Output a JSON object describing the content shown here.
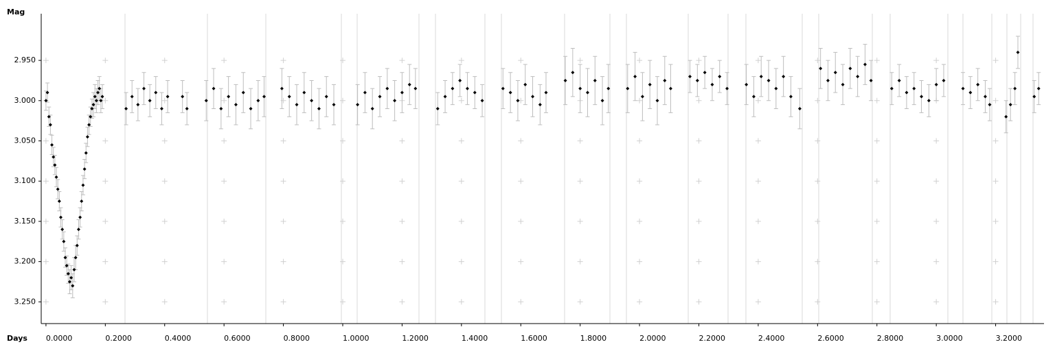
{
  "chart_data": {
    "type": "errorbar-scatter",
    "xlabel": "Days",
    "ylabel": "Mag",
    "xlim": [
      -0.016,
      3.363
    ],
    "ylim": [
      2.892,
      3.277
    ],
    "invert_y": true,
    "grid": "cross",
    "color": "#000000",
    "error_color": "#bdbdbd",
    "xticks": [
      {
        "value": 0,
        "label": "0.0000"
      },
      {
        "value": 0.2,
        "label": "0.2000"
      },
      {
        "value": 0.4,
        "label": "0.4000"
      },
      {
        "value": 0.6,
        "label": "0.6000"
      },
      {
        "value": 0.8,
        "label": "0.8000"
      },
      {
        "value": 1.0,
        "label": "1.0000"
      },
      {
        "value": 1.2,
        "label": "1.2000"
      },
      {
        "value": 1.4,
        "label": "1.4000"
      },
      {
        "value": 1.6,
        "label": "1.6000"
      },
      {
        "value": 1.8,
        "label": "1.8000"
      },
      {
        "value": 2.0,
        "label": "2.0000"
      },
      {
        "value": 2.2,
        "label": "2.2000"
      },
      {
        "value": 2.4,
        "label": "2.4000"
      },
      {
        "value": 2.6,
        "label": "2.6000"
      },
      {
        "value": 2.8,
        "label": "2.8000"
      },
      {
        "value": 3.0,
        "label": "3.0000"
      },
      {
        "value": 3.2,
        "label": "3.2000"
      }
    ],
    "yticks": [
      {
        "value": 2.95,
        "label": "2.950"
      },
      {
        "value": 3.0,
        "label": "3.000"
      },
      {
        "value": 3.05,
        "label": "3.050"
      },
      {
        "value": 3.1,
        "label": "3.100"
      },
      {
        "value": 3.15,
        "label": "3.150"
      },
      {
        "value": 3.2,
        "label": "3.200"
      },
      {
        "value": 3.25,
        "label": "3.250"
      }
    ],
    "x": [
      0.0,
      0.005,
      0.01,
      0.015,
      0.02,
      0.025,
      0.03,
      0.035,
      0.04,
      0.045,
      0.05,
      0.055,
      0.06,
      0.065,
      0.07,
      0.075,
      0.08,
      0.085,
      0.09,
      0.095,
      0.1,
      0.105,
      0.11,
      0.115,
      0.12,
      0.125,
      0.13,
      0.135,
      0.14,
      0.145,
      0.15,
      0.155,
      0.16,
      0.165,
      0.17,
      0.175,
      0.18,
      0.185,
      0.19,
      0.27,
      0.29,
      0.31,
      0.33,
      0.35,
      0.37,
      0.39,
      0.41,
      0.46,
      0.475,
      0.54,
      0.565,
      0.59,
      0.615,
      0.64,
      0.665,
      0.69,
      0.715,
      0.735,
      0.795,
      0.82,
      0.845,
      0.87,
      0.895,
      0.92,
      0.945,
      0.97,
      1.05,
      1.075,
      1.1,
      1.125,
      1.15,
      1.175,
      1.2,
      1.225,
      1.245,
      1.32,
      1.345,
      1.37,
      1.395,
      1.42,
      1.445,
      1.47,
      1.54,
      1.565,
      1.59,
      1.615,
      1.64,
      1.665,
      1.685,
      1.75,
      1.775,
      1.8,
      1.825,
      1.85,
      1.875,
      1.895,
      1.96,
      1.985,
      2.01,
      2.035,
      2.06,
      2.085,
      2.105,
      2.17,
      2.195,
      2.22,
      2.245,
      2.27,
      2.295,
      2.36,
      2.385,
      2.41,
      2.435,
      2.46,
      2.485,
      2.51,
      2.54,
      2.61,
      2.635,
      2.66,
      2.685,
      2.71,
      2.735,
      2.76,
      2.78,
      2.85,
      2.875,
      2.9,
      2.925,
      2.95,
      2.975,
      3.0,
      3.025,
      3.09,
      3.115,
      3.14,
      3.165,
      3.18,
      3.235,
      3.25,
      3.265,
      3.275,
      3.33,
      3.345
    ],
    "values": [
      3.0,
      2.99,
      3.02,
      3.03,
      3.055,
      3.07,
      3.08,
      3.095,
      3.11,
      3.125,
      3.145,
      3.16,
      3.175,
      3.195,
      3.205,
      3.215,
      3.225,
      3.22,
      3.23,
      3.21,
      3.195,
      3.18,
      3.16,
      3.145,
      3.125,
      3.105,
      3.085,
      3.065,
      3.045,
      3.03,
      3.02,
      3.01,
      3.005,
      2.995,
      3.0,
      2.99,
      2.985,
      3.0,
      2.995,
      3.01,
      2.995,
      3.005,
      2.985,
      3.0,
      2.99,
      3.01,
      2.995,
      2.995,
      3.01,
      3.0,
      2.985,
      3.01,
      2.995,
      3.005,
      2.99,
      3.01,
      3.0,
      2.995,
      2.985,
      2.995,
      3.005,
      2.99,
      3.0,
      3.01,
      2.995,
      3.005,
      3.005,
      2.99,
      3.01,
      2.995,
      2.985,
      3.0,
      2.99,
      2.98,
      2.985,
      3.01,
      2.995,
      2.985,
      2.975,
      2.985,
      2.99,
      3.0,
      2.985,
      2.99,
      3.0,
      2.98,
      2.995,
      3.005,
      2.99,
      2.975,
      2.965,
      2.985,
      2.99,
      2.975,
      3.0,
      2.985,
      2.985,
      2.97,
      2.995,
      2.98,
      3.0,
      2.975,
      2.985,
      2.97,
      2.975,
      2.965,
      2.98,
      2.97,
      2.985,
      2.98,
      2.995,
      2.97,
      2.975,
      2.985,
      2.97,
      2.995,
      3.01,
      2.96,
      2.975,
      2.965,
      2.98,
      2.96,
      2.97,
      2.955,
      2.975,
      2.985,
      2.975,
      2.99,
      2.985,
      2.995,
      3.0,
      2.98,
      2.975,
      2.985,
      2.99,
      2.98,
      2.995,
      3.005,
      3.02,
      3.005,
      2.985,
      2.94,
      2.995,
      2.985
    ],
    "errors": [
      0.012,
      0.012,
      0.012,
      0.012,
      0.012,
      0.012,
      0.012,
      0.012,
      0.012,
      0.012,
      0.012,
      0.012,
      0.012,
      0.012,
      0.012,
      0.012,
      0.015,
      0.015,
      0.015,
      0.015,
      0.015,
      0.012,
      0.012,
      0.012,
      0.012,
      0.012,
      0.012,
      0.012,
      0.012,
      0.012,
      0.012,
      0.012,
      0.015,
      0.015,
      0.015,
      0.015,
      0.015,
      0.015,
      0.015,
      0.02,
      0.02,
      0.02,
      0.02,
      0.02,
      0.02,
      0.02,
      0.02,
      0.02,
      0.02,
      0.025,
      0.025,
      0.025,
      0.025,
      0.025,
      0.025,
      0.025,
      0.025,
      0.025,
      0.025,
      0.025,
      0.025,
      0.025,
      0.025,
      0.025,
      0.025,
      0.025,
      0.025,
      0.025,
      0.025,
      0.025,
      0.025,
      0.025,
      0.025,
      0.025,
      0.025,
      0.02,
      0.02,
      0.02,
      0.02,
      0.02,
      0.02,
      0.02,
      0.025,
      0.025,
      0.025,
      0.025,
      0.025,
      0.025,
      0.025,
      0.03,
      0.03,
      0.03,
      0.03,
      0.03,
      0.03,
      0.03,
      0.03,
      0.03,
      0.03,
      0.03,
      0.03,
      0.03,
      0.03,
      0.02,
      0.02,
      0.02,
      0.02,
      0.02,
      0.02,
      0.025,
      0.025,
      0.025,
      0.025,
      0.025,
      0.025,
      0.025,
      0.025,
      0.025,
      0.025,
      0.025,
      0.025,
      0.025,
      0.025,
      0.025,
      0.025,
      0.02,
      0.02,
      0.02,
      0.02,
      0.02,
      0.02,
      0.02,
      0.02,
      0.02,
      0.02,
      0.02,
      0.02,
      0.02,
      0.02,
      0.02,
      0.02,
      0.02,
      0.02,
      0.02
    ]
  }
}
